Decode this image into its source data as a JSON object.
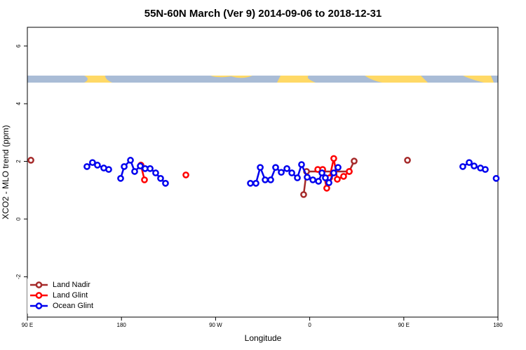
{
  "chart_data": {
    "type": "line",
    "title": "55N-60N March (Ver 9)   2014-09-06 to 2018-12-31",
    "x_label": "Longitude",
    "y_label": "XCO2 - MLO trend (ppm)",
    "xlim": [
      90,
      540
    ],
    "xticks": [
      {
        "value": 90,
        "label": "90 E"
      },
      {
        "value": 180,
        "label": "180"
      },
      {
        "value": 270,
        "label": "90 W"
      },
      {
        "value": 360,
        "label": "0"
      },
      {
        "value": 450,
        "label": "90 E"
      },
      {
        "value": 540,
        "label": "180"
      }
    ],
    "ylim": [
      -3.4,
      6.65
    ],
    "yticks": [
      -2,
      0,
      2,
      4,
      6
    ],
    "legend": "bottomleft",
    "series": [
      {
        "name": "Land Nadir",
        "color": "#a52a2a",
        "x": [
          93.4,
          null,
          354.2,
          357,
          397.8,
          402.5,
          null,
          453.5
        ],
        "values": [
          2.04,
          null,
          0.85,
          1.65,
          1.65,
          2.01,
          null,
          2.04
        ]
      },
      {
        "name": "Land Glint",
        "color": "#ff0000",
        "x": [
          198.6,
          202,
          null,
          241.6,
          null,
          367.7,
          372.4,
          376.3,
          379,
          383,
          386.4,
          392.4,
          397.8
        ],
        "values": [
          1.87,
          1.36,
          null,
          1.53,
          null,
          1.72,
          1.72,
          1.07,
          1.43,
          2.1,
          1.38,
          1.48,
          1.65
        ]
      },
      {
        "name": "Ocean Glint",
        "color": "#0000ee",
        "x": [
          147,
          152.3,
          157,
          163.1,
          167.8,
          null,
          179.2,
          182.6,
          188.6,
          192.6,
          198,
          202.6,
          207.4,
          212.7,
          217.4,
          222.1,
          null,
          303.3,
          308.6,
          312.7,
          317.4,
          322.7,
          327.4,
          332.8,
          338.2,
          342.9,
          348.2,
          352.2,
          357.6,
          363,
          368.4,
          371.7,
          375,
          378.4,
          383,
          387.1,
          null,
          506.4,
          512.5,
          517.2,
          523.3,
          527.9,
          null,
          538.3
        ],
        "values": [
          1.82,
          1.96,
          1.87,
          1.77,
          1.72,
          null,
          1.41,
          1.82,
          2.04,
          1.65,
          1.84,
          1.75,
          1.75,
          1.6,
          1.41,
          1.24,
          null,
          1.24,
          1.24,
          1.79,
          1.36,
          1.36,
          1.79,
          1.62,
          1.75,
          1.6,
          1.43,
          1.89,
          1.45,
          1.36,
          1.31,
          1.6,
          1.43,
          1.26,
          1.6,
          1.79,
          null,
          1.82,
          1.96,
          1.84,
          1.77,
          1.72,
          null,
          1.41
        ]
      }
    ]
  }
}
